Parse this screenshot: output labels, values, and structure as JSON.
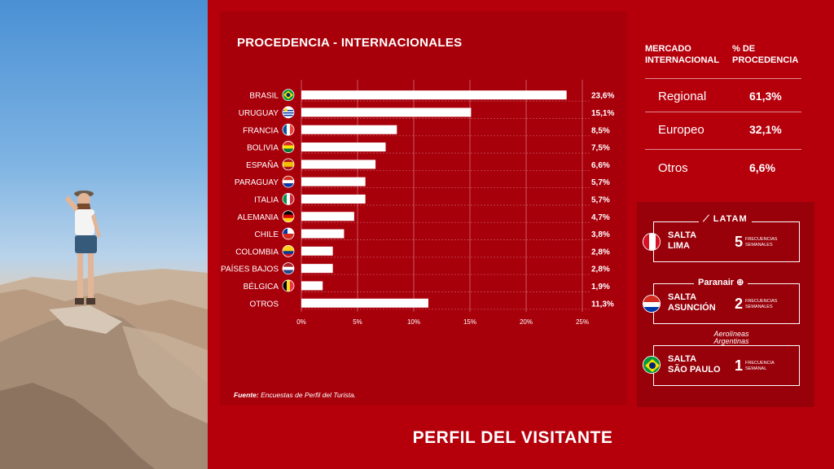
{
  "chart_data": {
    "type": "bar",
    "orientation": "horizontal",
    "title": "PROCEDENCIA - INTERNACIONALES",
    "categories": [
      "BRASIL",
      "URUGUAY",
      "FRANCIA",
      "BOLIVIA",
      "ESPAÑA",
      "PARAGUAY",
      "ITALIA",
      "ALEMANIA",
      "CHILE",
      "COLOMBIA",
      "PAÍSES BAJOS",
      "BÉLGICA",
      "OTROS"
    ],
    "values": [
      23.6,
      15.1,
      8.5,
      7.5,
      6.6,
      5.7,
      5.7,
      4.7,
      3.8,
      2.8,
      2.8,
      1.9,
      11.3
    ],
    "value_labels": [
      "23,6%",
      "15,1%",
      "8,5%",
      "7,5%",
      "6,6%",
      "5,7%",
      "5,7%",
      "4,7%",
      "3,8%",
      "2,8%",
      "2,8%",
      "1,9%",
      "11,3%"
    ],
    "flags": [
      "brazil-flag-icon",
      "uruguay-flag-icon",
      "france-flag-icon",
      "bolivia-flag-icon",
      "spain-flag-icon",
      "paraguay-flag-icon",
      "italy-flag-icon",
      "germany-flag-icon",
      "chile-flag-icon",
      "colombia-flag-icon",
      "netherlands-flag-icon",
      "belgium-flag-icon",
      ""
    ],
    "xlim": [
      0,
      25
    ],
    "xticks": [
      "0%",
      "5%",
      "10%",
      "15%",
      "20%",
      "25%"
    ],
    "xtick_values": [
      0,
      5,
      10,
      15,
      20,
      25
    ],
    "grid": true,
    "bar_color": "#ffffff"
  },
  "source": {
    "label": "Fuente:",
    "text": "Encuestas de Perfil del Turista."
  },
  "market_table": {
    "header_left": [
      "MERCADO",
      "INTERNACIONAL"
    ],
    "header_right": [
      "% DE",
      "PROCEDENCIA"
    ],
    "rows": [
      {
        "name": "Regional",
        "value": "61,3%"
      },
      {
        "name": "Europeo",
        "value": "32,1%"
      },
      {
        "name": "Otros",
        "value": "6,6%"
      }
    ]
  },
  "flights": [
    {
      "airline": "LATAM",
      "route": [
        "SALTA",
        "LIMA"
      ],
      "count": "5",
      "freq": [
        "FRECUENCIAS",
        "SEMANALES"
      ],
      "flag": "peru-flag-icon"
    },
    {
      "airline": "Paranair",
      "route": [
        "SALTA",
        "ASUNCIÓN"
      ],
      "count": "2",
      "freq": [
        "FRECUENCIAS",
        "SEMANALES"
      ],
      "flag": "paraguay-flag-icon"
    },
    {
      "airline": "Aerolíneas Argentinas",
      "route": [
        "SALTA",
        "SÃO PAULO"
      ],
      "count": "1",
      "freq": [
        "FRECUENCIA",
        "SEMANAL"
      ],
      "flag": "brazil-flag-icon"
    }
  ],
  "footer_title": "PERFIL DEL VISITANTE",
  "colors": {
    "background": "#b5000c",
    "card": "#a8000b",
    "bar": "#ffffff",
    "text": "#ffffff"
  }
}
